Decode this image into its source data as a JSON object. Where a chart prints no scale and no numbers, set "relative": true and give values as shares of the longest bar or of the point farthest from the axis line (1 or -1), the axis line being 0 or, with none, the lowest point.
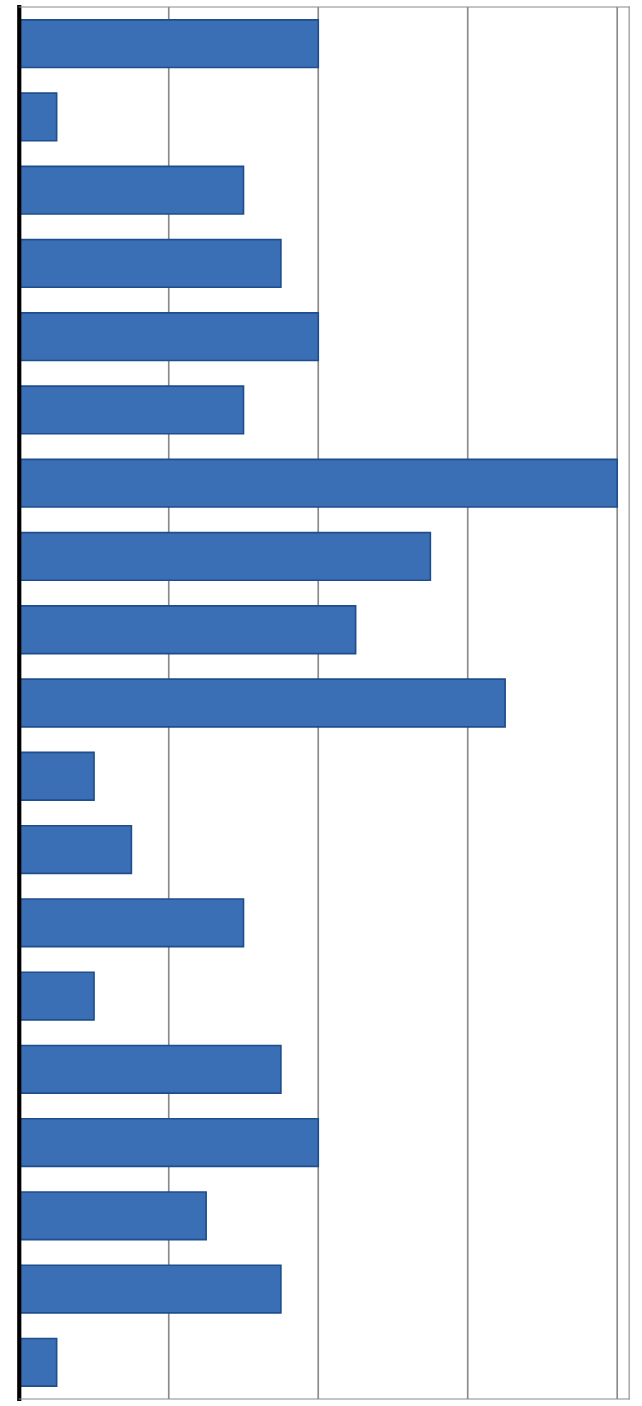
{
  "chart_data": {
    "type": "bar",
    "orientation": "horizontal",
    "relative": true,
    "grid": "x",
    "color": "#3a6fb5",
    "categories": [
      null,
      null,
      null,
      null,
      null,
      null,
      null,
      null,
      null,
      null,
      null,
      null,
      null,
      null,
      null,
      null,
      null,
      null,
      null
    ],
    "values": [
      0.5,
      0.0625,
      0.375,
      0.4375,
      0.5,
      0.375,
      1,
      0.6875,
      0.5625,
      0.8125,
      0.125,
      0.1875,
      0.375,
      0.125,
      0.4375,
      0.5,
      0.3125,
      0.4375,
      0.0625
    ]
  }
}
